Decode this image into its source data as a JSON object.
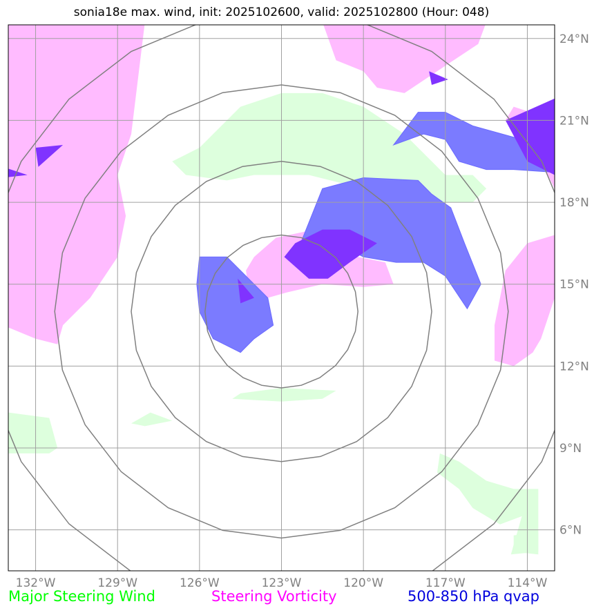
{
  "title": "sonia18e max. wind, init: 2025102600, valid: 2025102800 (Hour: 048)",
  "map": {
    "lon_range": [
      -133,
      -113
    ],
    "lat_range": [
      4.5,
      24.5
    ],
    "lon_ticks": [
      {
        "value": -132,
        "label": "132°W"
      },
      {
        "value": -129,
        "label": "129°W"
      },
      {
        "value": -126,
        "label": "126°W"
      },
      {
        "value": -123,
        "label": "123°W"
      },
      {
        "value": -120,
        "label": "120°W"
      },
      {
        "value": -117,
        "label": "117°W"
      },
      {
        "value": -114,
        "label": "114°W"
      }
    ],
    "lat_ticks": [
      {
        "value": 24,
        "label": "24°N"
      },
      {
        "value": 21,
        "label": "21°N"
      },
      {
        "value": 18,
        "label": "18°N"
      },
      {
        "value": 15,
        "label": "15°N"
      },
      {
        "value": 12,
        "label": "12°N"
      },
      {
        "value": 9,
        "label": "9°N"
      },
      {
        "value": 6,
        "label": "6°N"
      }
    ],
    "storm_center": {
      "lon": -123.0,
      "lat": 14.0
    },
    "range_rings_deg": [
      2.8,
      5.5,
      8.3,
      11.0
    ],
    "colors": {
      "wind": "#ddffdd",
      "vorticity": "#ffbbff",
      "qvap_light": "#7b7bff",
      "qvap_dark": "#8033ff",
      "rings": "#808080",
      "grid": "#a0a0a0"
    },
    "layers": {
      "wind": [
        [
          [
            -127.0,
            19.5
          ],
          [
            -126.0,
            20.0
          ],
          [
            -124.5,
            21.5
          ],
          [
            -123.0,
            22.0
          ],
          [
            -121.5,
            22.0
          ],
          [
            -120.0,
            21.5
          ],
          [
            -118.5,
            20.5
          ],
          [
            -117.0,
            19.0
          ],
          [
            -116.0,
            19.0
          ],
          [
            -115.5,
            18.5
          ],
          [
            -116.0,
            18.0
          ],
          [
            -118.0,
            18.0
          ],
          [
            -120.0,
            18.5
          ],
          [
            -122.0,
            19.0
          ],
          [
            -124.0,
            19.0
          ],
          [
            -125.0,
            18.8
          ],
          [
            -126.5,
            19.0
          ]
        ],
        [
          [
            -117.2,
            8.8
          ],
          [
            -116.5,
            8.5
          ],
          [
            -115.5,
            7.8
          ],
          [
            -114.5,
            7.5
          ],
          [
            -113.6,
            7.5
          ],
          [
            -113.6,
            5.2
          ],
          [
            -114.6,
            5.1
          ],
          [
            -114.2,
            6.5
          ],
          [
            -115.0,
            6.2
          ],
          [
            -116.0,
            6.8
          ],
          [
            -116.5,
            7.5
          ],
          [
            -117.3,
            8.1
          ]
        ],
        [
          [
            -134.0,
            10.5
          ],
          [
            -133.0,
            10.3
          ],
          [
            -131.5,
            10.1
          ],
          [
            -131.2,
            9.0
          ],
          [
            -131.5,
            8.8
          ],
          [
            -133.5,
            8.8
          ]
        ],
        [
          [
            -124.5,
            11.0
          ],
          [
            -123.0,
            11.2
          ],
          [
            -121.0,
            11.1
          ],
          [
            -121.5,
            10.8
          ],
          [
            -123.0,
            10.7
          ],
          [
            -124.8,
            10.8
          ]
        ],
        [
          [
            -128.5,
            9.9
          ],
          [
            -127.8,
            10.3
          ],
          [
            -127.0,
            10.0
          ],
          [
            -128.0,
            9.8
          ]
        ],
        [
          [
            -114.5,
            5.8
          ],
          [
            -113.6,
            5.9
          ],
          [
            -113.6,
            5.1
          ],
          [
            -114.5,
            5.2
          ]
        ]
      ],
      "vorticity": [
        [
          [
            -133.2,
            24.6
          ],
          [
            -128.0,
            24.6
          ],
          [
            -128.5,
            20.5
          ],
          [
            -129.0,
            19.0
          ],
          [
            -128.7,
            17.5
          ],
          [
            -129.0,
            16.0
          ],
          [
            -130.0,
            14.5
          ],
          [
            -131.0,
            13.5
          ],
          [
            -131.2,
            12.8
          ],
          [
            -132.0,
            13.0
          ],
          [
            -133.2,
            13.5
          ]
        ],
        [
          [
            -121.5,
            24.6
          ],
          [
            -115.5,
            24.6
          ],
          [
            -115.8,
            23.8
          ],
          [
            -117.0,
            23.0
          ],
          [
            -118.5,
            22.0
          ],
          [
            -119.5,
            22.2
          ],
          [
            -120.0,
            22.8
          ],
          [
            -121.0,
            23.2
          ]
        ],
        [
          [
            -114.5,
            21.5
          ],
          [
            -113.0,
            21.0
          ],
          [
            -113.0,
            18.5
          ],
          [
            -113.5,
            19.5
          ],
          [
            -114.0,
            20.5
          ],
          [
            -114.8,
            21.0
          ]
        ],
        [
          [
            -114.0,
            16.5
          ],
          [
            -113.0,
            16.8
          ],
          [
            -113.0,
            14.5
          ],
          [
            -113.5,
            13.0
          ],
          [
            -113.8,
            12.5
          ],
          [
            -114.5,
            12.0
          ],
          [
            -115.2,
            12.2
          ],
          [
            -115.2,
            13.5
          ],
          [
            -114.8,
            15.5
          ]
        ],
        [
          [
            -124.0,
            16.0
          ],
          [
            -123.2,
            16.7
          ],
          [
            -121.8,
            17.0
          ],
          [
            -121.0,
            16.3
          ],
          [
            -120.2,
            16.0
          ],
          [
            -119.2,
            15.8
          ],
          [
            -118.9,
            15.0
          ],
          [
            -120.0,
            14.9
          ],
          [
            -121.5,
            15.0
          ],
          [
            -122.8,
            14.7
          ],
          [
            -123.5,
            14.5
          ],
          [
            -124.2,
            14.8
          ],
          [
            -124.3,
            15.5
          ]
        ]
      ],
      "qvap_light": [
        [
          [
            -118.9,
            20.1
          ],
          [
            -118.0,
            21.3
          ],
          [
            -117.0,
            21.3
          ],
          [
            -116.0,
            20.8
          ],
          [
            -114.2,
            20.3
          ],
          [
            -113.5,
            20.0
          ],
          [
            -113.0,
            19.8
          ],
          [
            -113.0,
            19.1
          ],
          [
            -114.5,
            19.2
          ],
          [
            -115.5,
            19.2
          ],
          [
            -116.5,
            19.5
          ],
          [
            -117.0,
            20.3
          ],
          [
            -117.8,
            20.5
          ]
        ],
        [
          [
            -122.5,
            16.0
          ],
          [
            -121.5,
            18.5
          ],
          [
            -120.0,
            18.9
          ],
          [
            -118.0,
            18.8
          ],
          [
            -117.5,
            18.3
          ],
          [
            -116.8,
            17.8
          ],
          [
            -116.3,
            16.5
          ],
          [
            -115.7,
            15.0
          ],
          [
            -116.2,
            14.1
          ],
          [
            -117.0,
            15.3
          ],
          [
            -117.8,
            15.8
          ],
          [
            -118.8,
            15.8
          ],
          [
            -120.0,
            16.0
          ],
          [
            -121.0,
            16.5
          ],
          [
            -122.2,
            16.5
          ]
        ],
        [
          [
            -126.0,
            16.0
          ],
          [
            -125.0,
            16.0
          ],
          [
            -124.0,
            15.0
          ],
          [
            -123.5,
            14.5
          ],
          [
            -123.3,
            13.5
          ],
          [
            -124.0,
            13.0
          ],
          [
            -124.5,
            12.5
          ],
          [
            -125.5,
            13.0
          ],
          [
            -126.0,
            14.0
          ],
          [
            -126.1,
            15.0
          ]
        ]
      ],
      "qvap_dark": [
        [
          [
            -122.9,
            16.0
          ],
          [
            -122.5,
            16.5
          ],
          [
            -121.5,
            17.0
          ],
          [
            -120.5,
            17.0
          ],
          [
            -119.5,
            16.5
          ],
          [
            -120.5,
            15.8
          ],
          [
            -121.3,
            15.2
          ],
          [
            -122.0,
            15.2
          ]
        ],
        [
          [
            -114.8,
            21.0
          ],
          [
            -113.0,
            21.8
          ],
          [
            -113.0,
            19.0
          ],
          [
            -114.0,
            19.5
          ]
        ],
        [
          [
            -117.6,
            22.8
          ],
          [
            -116.9,
            22.5
          ],
          [
            -117.5,
            22.3
          ]
        ],
        [
          [
            -124.6,
            15.2
          ],
          [
            -124.0,
            14.5
          ],
          [
            -124.5,
            14.3
          ]
        ],
        [
          [
            -132.0,
            20.0
          ],
          [
            -131.0,
            20.1
          ],
          [
            -131.9,
            19.3
          ]
        ],
        [
          [
            -133.2,
            19.3
          ],
          [
            -132.3,
            19.0
          ],
          [
            -133.2,
            18.9
          ]
        ]
      ]
    }
  },
  "legend": {
    "wind": {
      "label": "Major Steering Wind",
      "color": "#00ff00"
    },
    "vorticity": {
      "label": "Steering Vorticity",
      "color": "#ff00ff"
    },
    "qvap": {
      "label": "500-850 hPa qvap",
      "color": "#0000dd"
    }
  }
}
